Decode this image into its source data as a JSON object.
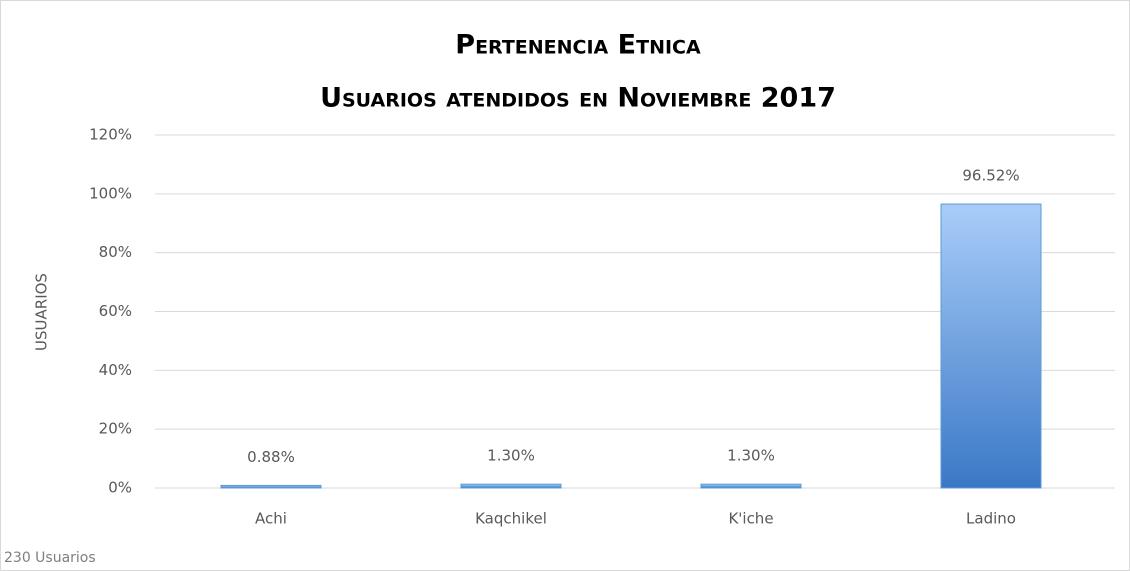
{
  "chart_data": {
    "type": "bar",
    "title": "Pertenencia Etnica",
    "subtitle": "Usuarios atendidos en Noviembre 2017",
    "y_label": "USUARIOS",
    "footnote": "230 Usuarios",
    "categories": [
      "Achi",
      "Kaqchikel",
      "K'iche",
      "Ladino"
    ],
    "values": [
      0.88,
      1.3,
      1.3,
      96.52
    ],
    "value_labels": [
      "0.88%",
      "1.30%",
      "1.30%",
      "96.52%"
    ],
    "color": "#5b9bd5",
    "ylim": [
      0,
      120
    ],
    "yticks": [
      {
        "value": 0,
        "label": "0%"
      },
      {
        "value": 20,
        "label": "20%"
      },
      {
        "value": 40,
        "label": "40%"
      },
      {
        "value": 60,
        "label": "60%"
      },
      {
        "value": 80,
        "label": "80%"
      },
      {
        "value": 100,
        "label": "100%"
      },
      {
        "value": 120,
        "label": "120%"
      }
    ],
    "grid": true
  }
}
